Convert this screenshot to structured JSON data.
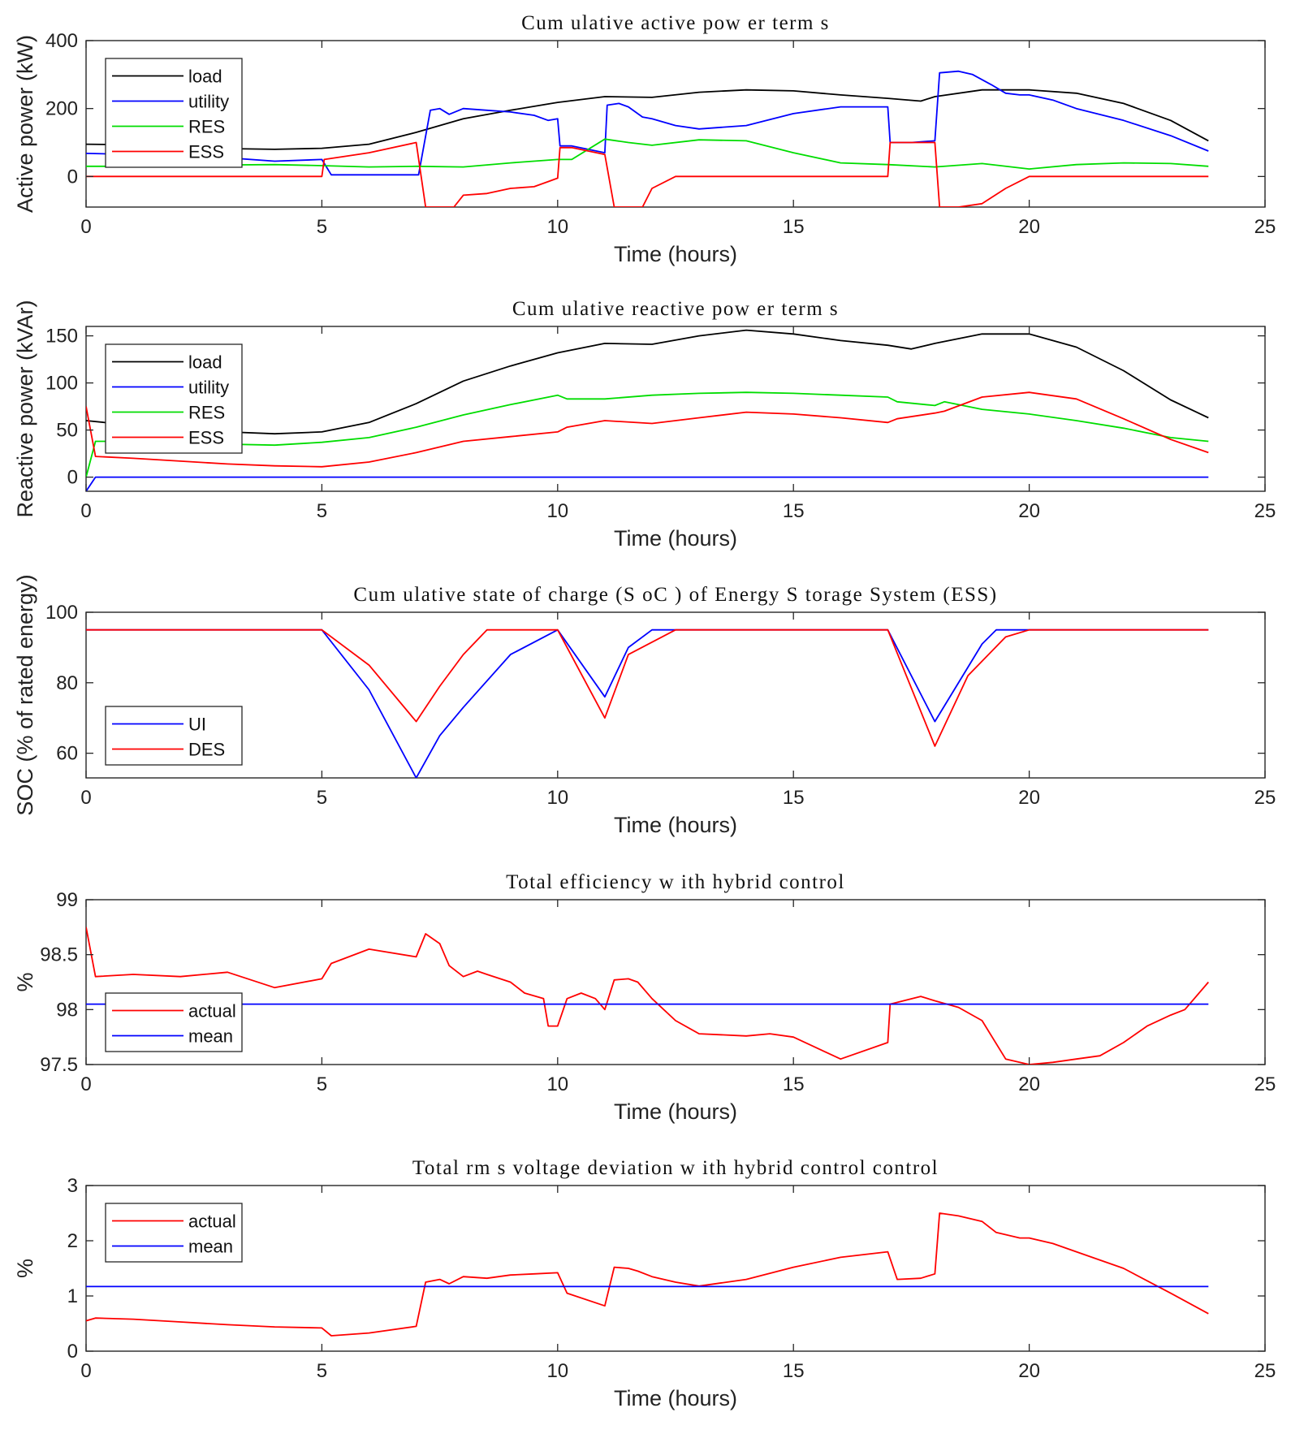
{
  "chart_data": [
    {
      "type": "line",
      "title": "Cum ulative active pow er term s",
      "xlabel": "Time (hours)",
      "ylabel": "Active power (kW)",
      "xlim": [
        0,
        25
      ],
      "ylim": [
        -90,
        400
      ],
      "xticks": [
        0,
        5,
        10,
        15,
        20,
        25
      ],
      "yticks": [
        0,
        200,
        400
      ],
      "legend": "top-left",
      "series": [
        {
          "name": "load",
          "color": "#000000",
          "x": [
            0,
            1,
            2,
            3,
            4,
            5,
            6,
            7,
            8,
            9,
            10,
            11,
            12,
            13,
            14,
            15,
            16,
            17,
            17.7,
            18,
            19,
            20,
            21,
            22,
            23,
            23.8
          ],
          "y": [
            95,
            93,
            88,
            82,
            80,
            83,
            95,
            130,
            170,
            195,
            218,
            235,
            233,
            248,
            255,
            252,
            240,
            230,
            222,
            235,
            255,
            255,
            245,
            215,
            165,
            105
          ]
        },
        {
          "name": "utility",
          "color": "#0000ff",
          "x": [
            0,
            1,
            2,
            3,
            4,
            5,
            5.2,
            6,
            7,
            7.05,
            7.3,
            7.5,
            7.7,
            8,
            8.5,
            9,
            9.5,
            9.8,
            10,
            10.05,
            10.3,
            11,
            11.05,
            11.3,
            11.5,
            11.8,
            12,
            12.5,
            13,
            14,
            15,
            16,
            17,
            17.05,
            17.5,
            18,
            18.1,
            18.5,
            18.8,
            19.2,
            19.5,
            19.8,
            20,
            20.5,
            21,
            22,
            23,
            23.8
          ],
          "y": [
            68,
            65,
            60,
            55,
            45,
            50,
            5,
            5,
            5,
            5,
            195,
            200,
            183,
            200,
            195,
            190,
            180,
            165,
            170,
            90,
            90,
            70,
            210,
            215,
            205,
            175,
            170,
            150,
            140,
            150,
            185,
            205,
            205,
            100,
            100,
            105,
            305,
            310,
            300,
            270,
            245,
            240,
            240,
            225,
            200,
            165,
            120,
            75
          ]
        },
        {
          "name": "RES",
          "color": "#00dd00",
          "x": [
            0,
            1,
            2,
            3,
            4,
            5,
            6,
            7,
            8,
            9,
            10,
            10.3,
            11,
            11.5,
            12,
            13,
            14,
            15,
            16,
            17,
            18,
            19,
            20,
            21,
            22,
            23,
            23.8
          ],
          "y": [
            30,
            30,
            33,
            34,
            35,
            32,
            28,
            30,
            28,
            40,
            50,
            50,
            110,
            100,
            92,
            108,
            105,
            70,
            40,
            35,
            28,
            38,
            22,
            35,
            40,
            38,
            30
          ]
        },
        {
          "name": "ESS",
          "color": "#ff0000",
          "x": [
            0,
            1,
            2,
            3,
            4,
            5,
            5.05,
            6,
            7,
            7.2,
            7.5,
            7.8,
            8,
            8.5,
            9,
            9.5,
            9.8,
            10,
            10.05,
            10.3,
            11,
            11.2,
            11.5,
            11.8,
            12,
            12.5,
            13,
            14,
            15,
            16,
            17,
            17.05,
            18,
            18.1,
            18.5,
            19,
            19.5,
            20,
            21,
            22,
            23,
            23.8
          ],
          "y": [
            0,
            0,
            0,
            0,
            0,
            0,
            50,
            70,
            100,
            -90,
            -90,
            -90,
            -55,
            -50,
            -35,
            -30,
            -15,
            -5,
            85,
            85,
            65,
            -90,
            -90,
            -90,
            -35,
            0,
            0,
            0,
            0,
            0,
            0,
            100,
            100,
            -90,
            -90,
            -80,
            -35,
            0,
            0,
            0,
            0,
            0
          ]
        }
      ]
    },
    {
      "type": "line",
      "title": "Cum ulative reactive pow er term s",
      "xlabel": "Time (hours)",
      "ylabel": "Reactive power (kVAr)",
      "xlim": [
        0,
        25
      ],
      "ylim": [
        -15,
        160
      ],
      "xticks": [
        0,
        5,
        10,
        15,
        20,
        25
      ],
      "yticks": [
        0,
        50,
        100,
        150
      ],
      "legend": "top-left",
      "series": [
        {
          "name": "load",
          "color": "#000000",
          "x": [
            0,
            1,
            2,
            3,
            4,
            5,
            6,
            7,
            8,
            9,
            10,
            11,
            12,
            13,
            14,
            15,
            16,
            17,
            17.5,
            18,
            19,
            20,
            21,
            22,
            23,
            23.8
          ],
          "y": [
            60,
            55,
            52,
            48,
            46,
            48,
            58,
            78,
            102,
            118,
            132,
            142,
            141,
            150,
            156,
            152,
            145,
            140,
            136,
            142,
            152,
            152,
            138,
            113,
            82,
            63
          ]
        },
        {
          "name": "utility",
          "color": "#0000ff",
          "x": [
            0,
            0.2,
            1,
            5,
            10,
            15,
            20,
            23.8
          ],
          "y": [
            -15,
            0,
            0,
            0,
            0,
            0,
            0,
            0
          ]
        },
        {
          "name": "RES",
          "color": "#00dd00",
          "x": [
            0,
            0.2,
            1,
            2,
            3,
            4,
            5,
            6,
            7,
            8,
            9,
            10,
            10.2,
            11,
            12,
            13,
            14,
            15,
            16,
            17,
            17.2,
            18,
            18.2,
            19,
            20,
            21,
            22,
            23,
            23.8
          ],
          "y": [
            0,
            38,
            38,
            37,
            35,
            34,
            37,
            42,
            53,
            66,
            77,
            87,
            83,
            83,
            87,
            89,
            90,
            89,
            87,
            85,
            80,
            76,
            80,
            72,
            67,
            60,
            52,
            42,
            38
          ]
        },
        {
          "name": "ESS",
          "color": "#ff0000",
          "x": [
            0,
            0.2,
            1,
            2,
            3,
            4,
            5,
            6,
            7,
            8,
            9,
            10,
            10.2,
            11,
            12,
            13,
            14,
            15,
            16,
            17,
            17.2,
            18,
            18.2,
            19,
            20,
            21,
            22,
            23,
            23.8
          ],
          "y": [
            75,
            22,
            20,
            17,
            14,
            12,
            11,
            16,
            26,
            38,
            43,
            48,
            53,
            60,
            57,
            63,
            69,
            67,
            63,
            58,
            62,
            68,
            70,
            85,
            90,
            83,
            62,
            40,
            26
          ]
        }
      ]
    },
    {
      "type": "line",
      "title": "Cum ulative state of charge (S oC ) of Energy S torage System  (ESS)",
      "xlabel": "Time (hours)",
      "ylabel": "SOC (% of rated energy)",
      "xlim": [
        0,
        25
      ],
      "ylim": [
        53,
        100
      ],
      "xticks": [
        0,
        5,
        10,
        15,
        20,
        25
      ],
      "yticks": [
        60,
        80,
        100
      ],
      "legend": "bottom-left",
      "series": [
        {
          "name": "UI",
          "color": "#0000ff",
          "x": [
            0,
            5,
            6,
            7,
            7.5,
            8,
            9,
            10,
            11,
            11.5,
            12,
            17,
            18,
            19,
            19.3,
            20,
            23.8
          ],
          "y": [
            95,
            95,
            78,
            53,
            65,
            73,
            88,
            95,
            76,
            90,
            95,
            95,
            69,
            91,
            95,
            95,
            95
          ]
        },
        {
          "name": "DES",
          "color": "#ff0000",
          "x": [
            0,
            5,
            6,
            7,
            7.5,
            8,
            8.5,
            10,
            11,
            11.5,
            12.5,
            17,
            18,
            18.7,
            19.5,
            20,
            23.8
          ],
          "y": [
            95,
            95,
            85,
            69,
            79,
            88,
            95,
            95,
            70,
            88,
            95,
            95,
            62,
            82,
            93,
            95,
            95
          ]
        }
      ]
    },
    {
      "type": "line",
      "title": "Total efficiency w ith hybrid control",
      "xlabel": "Time (hours)",
      "ylabel": "%",
      "xlim": [
        0,
        25
      ],
      "ylim": [
        97.5,
        99
      ],
      "xticks": [
        0,
        5,
        10,
        15,
        20,
        25
      ],
      "yticks": [
        97.5,
        98,
        98.5,
        99
      ],
      "legend": "bottom-left",
      "series": [
        {
          "name": "actual",
          "color": "#ff0000",
          "x": [
            0,
            0.2,
            1,
            2,
            3,
            4,
            5,
            5.2,
            6,
            7,
            7.2,
            7.5,
            7.7,
            8,
            8.3,
            8.5,
            9,
            9.3,
            9.7,
            9.8,
            10,
            10.2,
            10.5,
            10.8,
            11,
            11.2,
            11.5,
            11.7,
            12,
            12.5,
            13,
            14,
            14.5,
            15,
            15.5,
            16,
            17,
            17.05,
            17.7,
            18,
            18.5,
            19,
            19.5,
            20,
            20.5,
            21,
            21.5,
            22,
            22.5,
            23,
            23.3,
            23.8
          ],
          "y": [
            98.75,
            98.3,
            98.32,
            98.3,
            98.34,
            98.2,
            98.28,
            98.42,
            98.55,
            98.48,
            98.69,
            98.6,
            98.4,
            98.3,
            98.35,
            98.32,
            98.25,
            98.15,
            98.1,
            97.85,
            97.85,
            98.1,
            98.15,
            98.1,
            98.0,
            98.27,
            98.28,
            98.25,
            98.1,
            97.9,
            97.78,
            97.76,
            97.78,
            97.75,
            97.65,
            97.55,
            97.7,
            98.05,
            98.12,
            98.08,
            98.02,
            97.9,
            97.55,
            97.5,
            97.52,
            97.55,
            97.58,
            97.7,
            97.85,
            97.95,
            98.0,
            98.25
          ]
        },
        {
          "name": "mean",
          "color": "#0000ff",
          "x": [
            0,
            23.8
          ],
          "y": [
            98.05,
            98.05
          ]
        }
      ]
    },
    {
      "type": "line",
      "title": "Total rm s voltage deviation w ith hybrid control control",
      "xlabel": "Time (hours)",
      "ylabel": "%",
      "xlim": [
        0,
        25
      ],
      "ylim": [
        0,
        3
      ],
      "xticks": [
        0,
        5,
        10,
        15,
        20,
        25
      ],
      "yticks": [
        0,
        1,
        2,
        3
      ],
      "legend": "top-left",
      "series": [
        {
          "name": "actual",
          "color": "#ff0000",
          "x": [
            0,
            0.2,
            1,
            2,
            3,
            4,
            5,
            5.2,
            6,
            7,
            7.2,
            7.5,
            7.7,
            8,
            8.5,
            9,
            9.5,
            10,
            10.2,
            11,
            11.2,
            11.5,
            11.7,
            12,
            12.5,
            13,
            14,
            15,
            16,
            17,
            17.2,
            17.7,
            18,
            18.1,
            18.5,
            19,
            19.3,
            19.8,
            20,
            20.5,
            21,
            22,
            23,
            23.8
          ],
          "y": [
            0.55,
            0.6,
            0.58,
            0.53,
            0.48,
            0.44,
            0.42,
            0.28,
            0.33,
            0.45,
            1.25,
            1.3,
            1.22,
            1.35,
            1.32,
            1.38,
            1.4,
            1.42,
            1.05,
            0.82,
            1.52,
            1.5,
            1.45,
            1.35,
            1.25,
            1.18,
            1.3,
            1.52,
            1.7,
            1.8,
            1.3,
            1.32,
            1.4,
            2.5,
            2.45,
            2.35,
            2.15,
            2.05,
            2.05,
            1.95,
            1.8,
            1.5,
            1.05,
            0.68
          ]
        },
        {
          "name": "mean",
          "color": "#0000ff",
          "x": [
            0,
            23.8
          ],
          "y": [
            1.17,
            1.17
          ]
        }
      ]
    }
  ]
}
